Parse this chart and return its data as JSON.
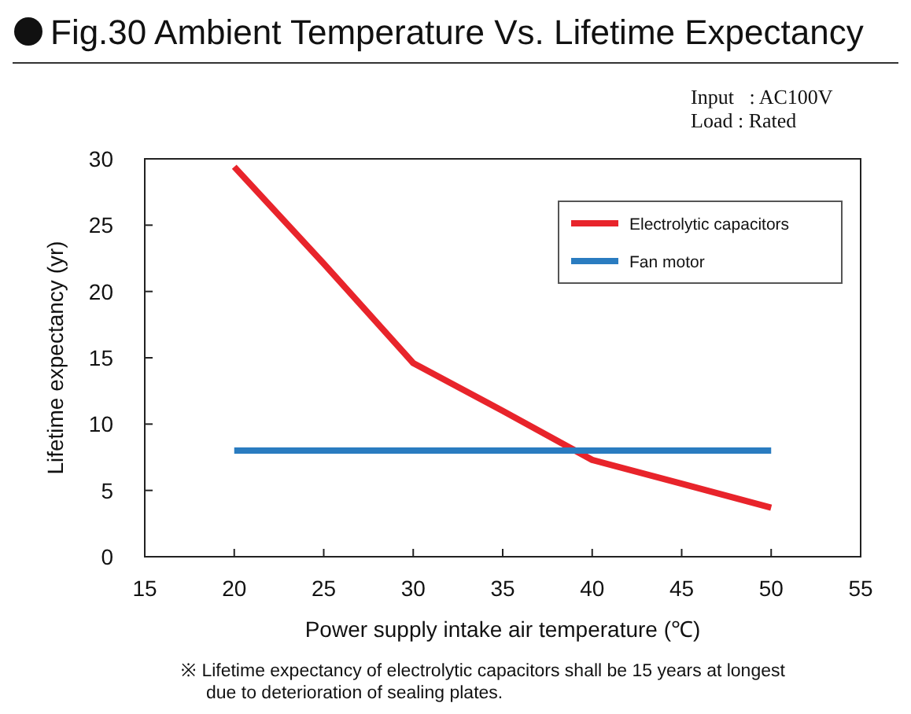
{
  "chart_data": {
    "type": "line",
    "title": "Fig.30 Ambient Temperature Vs. Lifetime Expectancy",
    "xlabel": "Power supply intake air temperature (℃)",
    "ylabel": "Lifetime expectancy (yr)",
    "x": [
      20,
      25,
      30,
      35,
      40,
      45,
      50
    ],
    "series": [
      {
        "name": "Electrolytic capacitors",
        "color": "#e8242b",
        "values": [
          29.4,
          22.1,
          14.6,
          11.0,
          7.3,
          5.5,
          3.7
        ]
      },
      {
        "name": "Fan motor",
        "color": "#2a7cc0",
        "values": [
          8,
          8,
          8,
          8,
          8,
          8,
          8
        ]
      }
    ],
    "xlim": [
      15,
      55
    ],
    "xticks": [
      15,
      20,
      25,
      30,
      35,
      40,
      45,
      50,
      55
    ],
    "ylim": [
      0,
      30
    ],
    "yticks": [
      0,
      5,
      10,
      15,
      20,
      25,
      30
    ],
    "grid": false,
    "legend": "top right",
    "marker": "none",
    "line_style": "solid",
    "annotations": [
      "Input   : AC100V",
      "Load : Rated",
      "※ Lifetime expectancy of electrolytic capacitors shall be 15 years at longest",
      "due to deterioration of sealing plates."
    ]
  }
}
